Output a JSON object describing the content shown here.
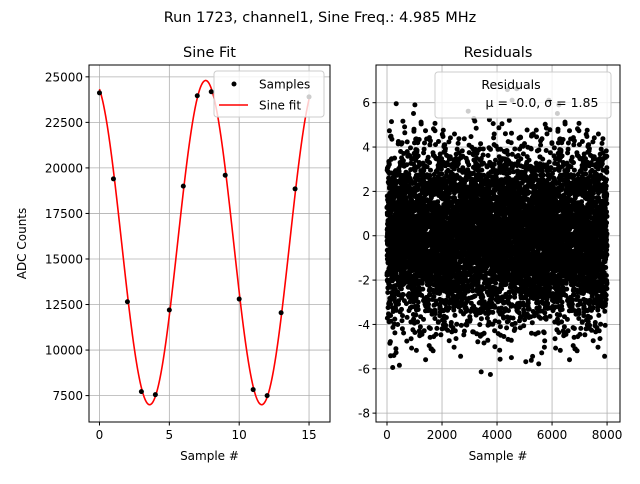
{
  "suptitle": "Run 1723, channel1, Sine Freq.: 4.985 MHz",
  "chart_data": [
    {
      "type": "line",
      "title": "Sine Fit",
      "xlabel": "Sample #",
      "ylabel": "ADC Counts",
      "xlim": [
        -0.75,
        16.5
      ],
      "ylim": [
        6050,
        25650
      ],
      "xticks": [
        0,
        5,
        10,
        15
      ],
      "yticks": [
        7500,
        10000,
        12500,
        15000,
        17500,
        20000,
        22500,
        25000
      ],
      "grid": true,
      "legend": {
        "placement": "top-right",
        "entries": [
          "Samples",
          "Sine fit"
        ]
      },
      "samples": {
        "name": "Samples",
        "x": [
          0,
          1,
          2,
          3,
          4,
          5,
          6,
          7,
          8,
          9,
          10,
          11,
          12,
          13,
          14,
          15
        ],
        "y": [
          24120,
          19400,
          12650,
          7720,
          7550,
          12200,
          19000,
          23960,
          24180,
          19600,
          12800,
          7830,
          7500,
          12050,
          18850,
          23900
        ]
      },
      "fit": {
        "name": "Sine fit",
        "offset": 15900,
        "amplitude": 8900,
        "period_samples": 8.02,
        "peak_at": 7.6,
        "x_range": [
          0,
          15
        ]
      },
      "colors": {
        "samples": "#000000",
        "fit": "#ff0000"
      }
    },
    {
      "type": "scatter",
      "title": "Residuals",
      "xlabel": "Sample #",
      "ylabel": "",
      "xlim": [
        -400,
        8470
      ],
      "ylim": [
        -8.4,
        7.7
      ],
      "xticks": [
        0,
        2000,
        4000,
        6000,
        8000
      ],
      "yticks": [
        -8,
        -6,
        -4,
        -2,
        0,
        2,
        4,
        6
      ],
      "grid": true,
      "legend": {
        "placement": "top-right",
        "entries": [
          "Residuals",
          "μ = -0.0, σ = 1.85"
        ]
      },
      "residuals": {
        "n": 8000,
        "mean": -0.0,
        "sigma": 1.85
      },
      "colors": {
        "points": "#000000"
      }
    }
  ]
}
